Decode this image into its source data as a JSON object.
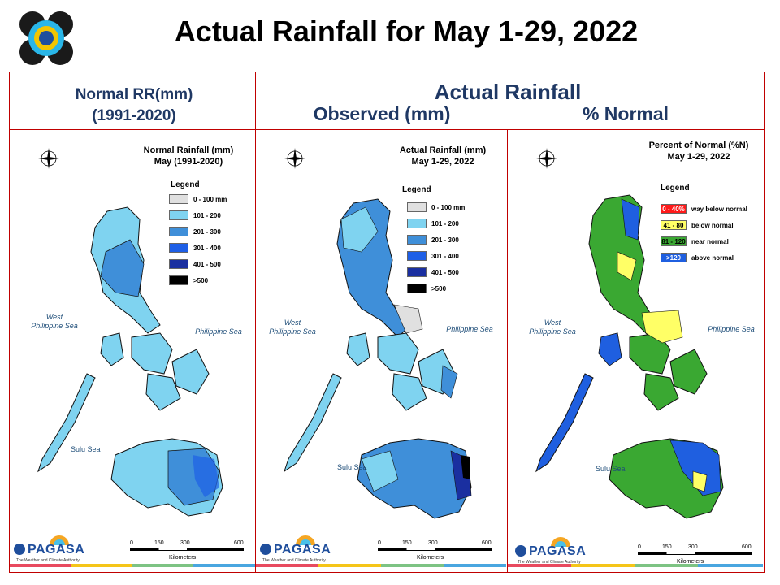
{
  "title": "Actual Rainfall for May 1-29, 2022",
  "headers": {
    "normal_line1": "Normal RR(mm)",
    "normal_line2": "(1991-2020)",
    "actual": "Actual Rainfall",
    "observed": "Observed (mm)",
    "percent": "% Normal"
  },
  "maps": {
    "normal": {
      "title_line1": "Normal Rainfall (mm)",
      "title_line2": "May (1991-2020)",
      "legend_title": "Legend",
      "legend": [
        {
          "label": "0 - 100 mm",
          "color": "#e0e0e0"
        },
        {
          "label": "101 - 200",
          "color": "#7fd3f0"
        },
        {
          "label": "201 - 300",
          "color": "#3f8fd9"
        },
        {
          "label": "301 - 400",
          "color": "#1e5fe6"
        },
        {
          "label": "401 - 500",
          "color": "#1a2fa0"
        },
        {
          "label": ">500",
          "color": "#000000"
        }
      ]
    },
    "actual": {
      "title_line1": "Actual Rainfall (mm)",
      "title_line2": "May 1-29, 2022",
      "legend_title": "Legend",
      "legend": [
        {
          "label": "0 - 100 mm",
          "color": "#e0e0e0"
        },
        {
          "label": "101 - 200",
          "color": "#7fd3f0"
        },
        {
          "label": "201 - 300",
          "color": "#3f8fd9"
        },
        {
          "label": "301 - 400",
          "color": "#1e5fe6"
        },
        {
          "label": "401 - 500",
          "color": "#1a2fa0"
        },
        {
          "label": ">500",
          "color": "#000000"
        }
      ]
    },
    "percent": {
      "title_line1": "Percent of Normal (%N)",
      "title_line2": "May 1-29, 2022",
      "legend_title": "Legend",
      "legend": [
        {
          "code": "0 - 40%",
          "label": "way below normal",
          "color": "#ff1a1a"
        },
        {
          "code": "41 - 80",
          "label": "below normal",
          "color": "#ffff66"
        },
        {
          "code": "81 - 120",
          "label": "near normal",
          "color": "#3aa832"
        },
        {
          "code": ">120",
          "label": "above normal",
          "color": "#1f5fe0"
        }
      ]
    }
  },
  "seas": {
    "west_line1": "West",
    "west_line2": "Philippine Sea",
    "east": "Philippine Sea",
    "sulu": "Sulu Sea"
  },
  "scale": {
    "ticks": [
      "0",
      "150",
      "300",
      "600"
    ],
    "unit": "Kilometers"
  },
  "branding": {
    "pagasa": "PAGASA",
    "pagasa_sub": "The Weather and Climate Authority",
    "compass_n": "N",
    "compass_s": "S",
    "compass_e": "E",
    "compass_w": "W"
  }
}
